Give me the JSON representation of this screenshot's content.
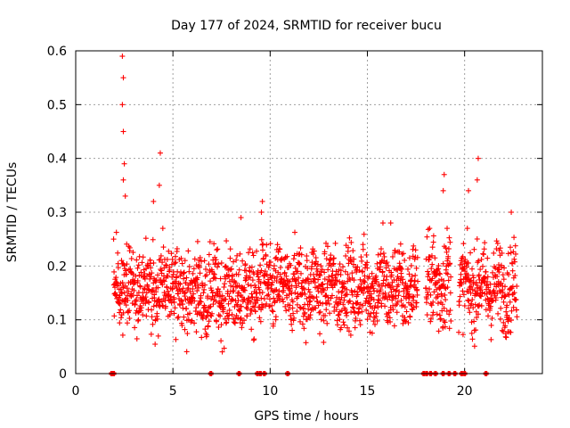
{
  "chart_data": {
    "type": "scatter",
    "title": "Day 177 of 2024, SRMTID for receiver bucu",
    "xlabel": "GPS time / hours",
    "ylabel": "SRMTID / TECUs",
    "xlim": [
      0,
      24
    ],
    "ylim": [
      0,
      0.6
    ],
    "xticks": [
      0,
      5,
      10,
      15,
      20
    ],
    "xtick_labels": [
      "0",
      "5",
      "10",
      "15",
      "20"
    ],
    "yticks": [
      0,
      0.1,
      0.2,
      0.3,
      0.4,
      0.5,
      0.6
    ],
    "ytick_labels": [
      "0",
      "0.1",
      "0.2",
      "0.3",
      "0.4",
      "0.5",
      "0.6"
    ],
    "grid": true,
    "marker": "+",
    "color": "#ff0000",
    "series": [
      {
        "name": "SRMTID",
        "segments": [
          {
            "t_start": 1.95,
            "t_end": 5.6,
            "mean": 0.16,
            "spread": 0.05
          },
          {
            "t_start": 5.6,
            "t_end": 9.2,
            "mean": 0.15,
            "spread": 0.05
          },
          {
            "t_start": 9.2,
            "t_end": 12.2,
            "mean": 0.16,
            "spread": 0.05
          },
          {
            "t_start": 12.2,
            "t_end": 17.6,
            "mean": 0.16,
            "spread": 0.05
          },
          {
            "t_start": 18.0,
            "t_end": 19.3,
            "mean": 0.17,
            "spread": 0.06
          },
          {
            "t_start": 19.7,
            "t_end": 22.7,
            "mean": 0.16,
            "spread": 0.05
          }
        ],
        "peaks": [
          {
            "x": 2.4,
            "y": 0.59
          },
          {
            "x": 2.45,
            "y": 0.55
          },
          {
            "x": 2.4,
            "y": 0.5
          },
          {
            "x": 2.45,
            "y": 0.45
          },
          {
            "x": 2.5,
            "y": 0.39
          },
          {
            "x": 2.45,
            "y": 0.36
          },
          {
            "x": 2.55,
            "y": 0.33
          },
          {
            "x": 4.0,
            "y": 0.32
          },
          {
            "x": 4.3,
            "y": 0.35
          },
          {
            "x": 4.35,
            "y": 0.41
          },
          {
            "x": 8.5,
            "y": 0.29
          },
          {
            "x": 9.6,
            "y": 0.32
          },
          {
            "x": 9.55,
            "y": 0.3
          },
          {
            "x": 15.8,
            "y": 0.28
          },
          {
            "x": 16.2,
            "y": 0.28
          },
          {
            "x": 18.95,
            "y": 0.37
          },
          {
            "x": 18.9,
            "y": 0.34
          },
          {
            "x": 20.2,
            "y": 0.34
          },
          {
            "x": 20.7,
            "y": 0.4
          },
          {
            "x": 20.65,
            "y": 0.36
          },
          {
            "x": 22.4,
            "y": 0.3
          }
        ],
        "zero_values_at": [
          1.85,
          1.95,
          6.95,
          8.4,
          9.35,
          9.5,
          9.7,
          10.9,
          17.9,
          18.05,
          18.25,
          18.5,
          18.9,
          19.2,
          19.5,
          19.85,
          20.0,
          21.1
        ]
      }
    ]
  }
}
